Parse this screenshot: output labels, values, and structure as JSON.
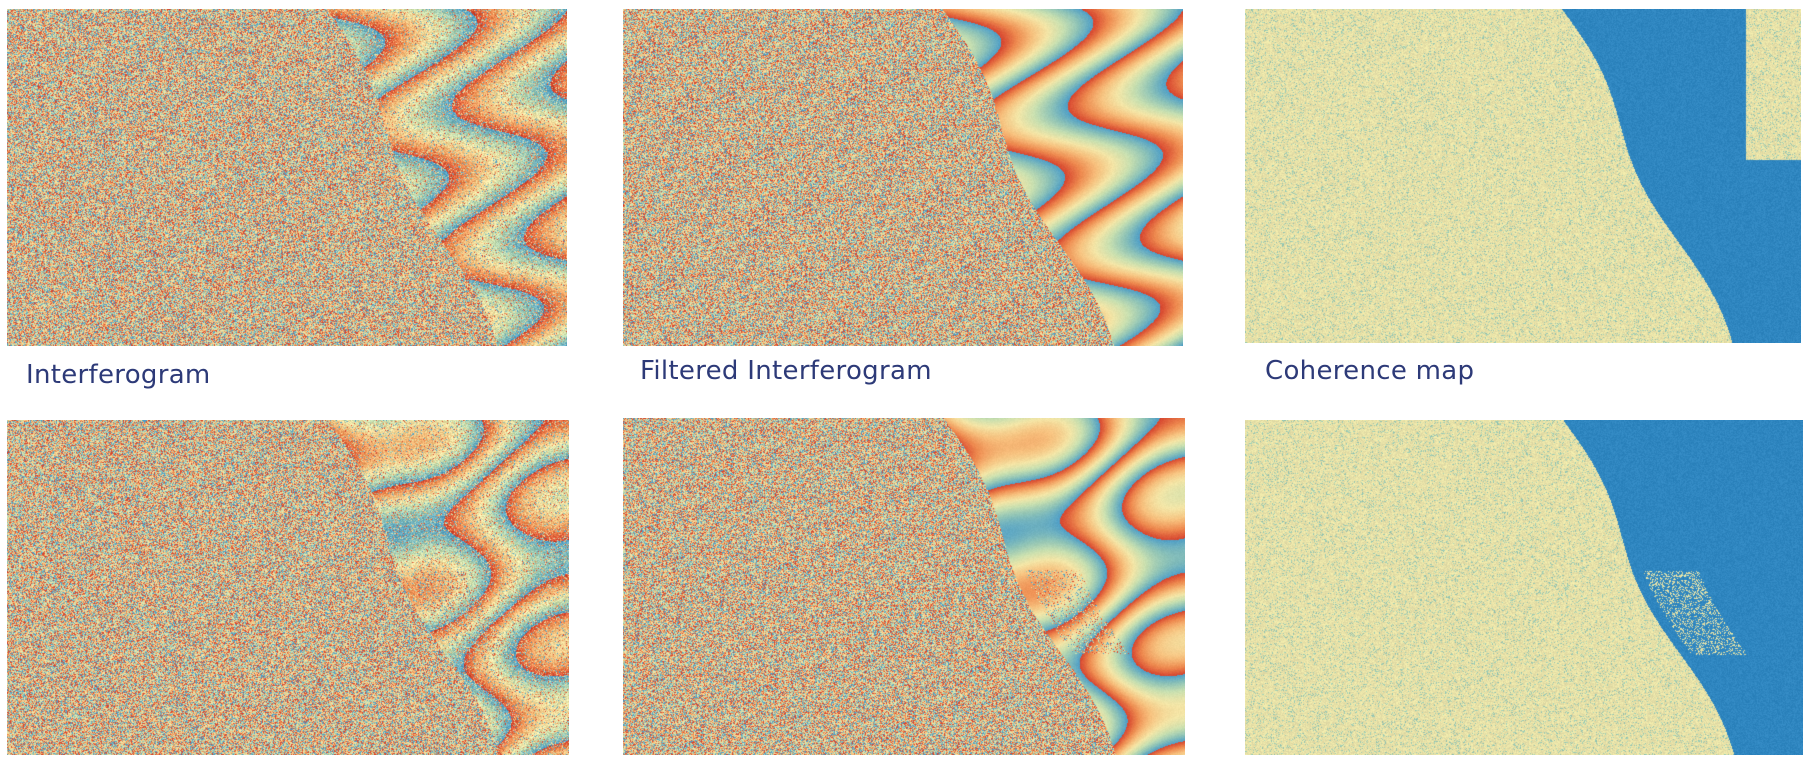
{
  "captions": {
    "interferogram": "Interferogram",
    "filtered_interferogram": "Filtered Interferogram",
    "coherence_map": "Coherence map"
  },
  "colors": {
    "caption_text": "#2d3a78",
    "noise_palette": [
      "#d7452f",
      "#ee8a4f",
      "#f7c17e",
      "#f4e6a7",
      "#c9e0b0",
      "#8ec3b7",
      "#4f9fc8"
    ],
    "coherence_high": "#2f86c0",
    "coherence_low": "#e8e2a8"
  },
  "panels": [
    {
      "name": "interferogram-top",
      "kind": "interferogram"
    },
    {
      "name": "filtered-interferogram-top",
      "kind": "filtered"
    },
    {
      "name": "coherence-map-top",
      "kind": "coherence"
    },
    {
      "name": "interferogram-bottom",
      "kind": "interferogram-b"
    },
    {
      "name": "filtered-interferogram-bottom",
      "kind": "filtered-b"
    },
    {
      "name": "coherence-map-bottom",
      "kind": "coherence-b"
    }
  ]
}
